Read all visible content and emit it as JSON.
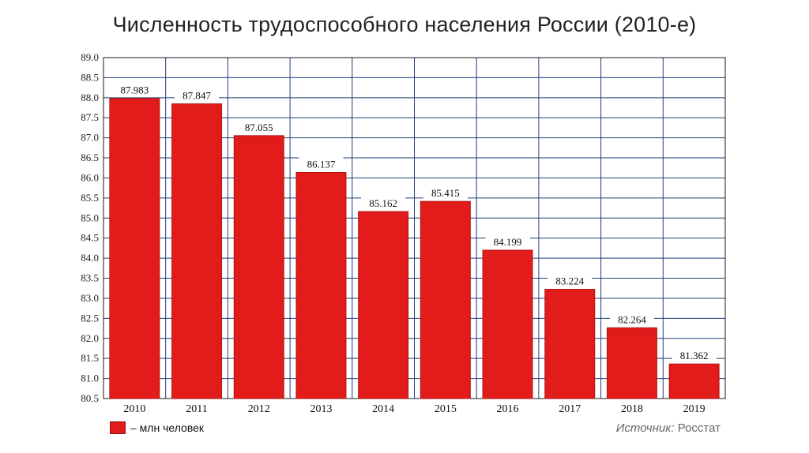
{
  "chart_data": {
    "type": "bar",
    "title": "Численность трудоспособного населения России (2010-е)",
    "categories": [
      "2010",
      "2011",
      "2012",
      "2013",
      "2014",
      "2015",
      "2016",
      "2017",
      "2018",
      "2019"
    ],
    "values": [
      87.983,
      87.847,
      87.055,
      86.137,
      85.162,
      85.415,
      84.199,
      83.224,
      82.264,
      81.362
    ],
    "value_labels": [
      "87.983",
      "87.847",
      "87.055",
      "86.137",
      "85.162",
      "85.415",
      "84.199",
      "83.224",
      "82.264",
      "81.362"
    ],
    "yticks": [
      "80.5",
      "81.0",
      "81.5",
      "82.0",
      "82.5",
      "83.0",
      "83.5",
      "84.0",
      "84.5",
      "85.0",
      "85.5",
      "86.0",
      "86.5",
      "87.0",
      "87.5",
      "88.0",
      "88.5",
      "89.0"
    ],
    "ylim": [
      80.5,
      89.0
    ],
    "grid": true,
    "legend": {
      "label": "– млн человек",
      "placement": "bottom-left"
    },
    "bar_color": "#e21b1b",
    "grid_color": "#1f3c78"
  },
  "source": {
    "label": "Источник:",
    "value": "Росстат"
  }
}
